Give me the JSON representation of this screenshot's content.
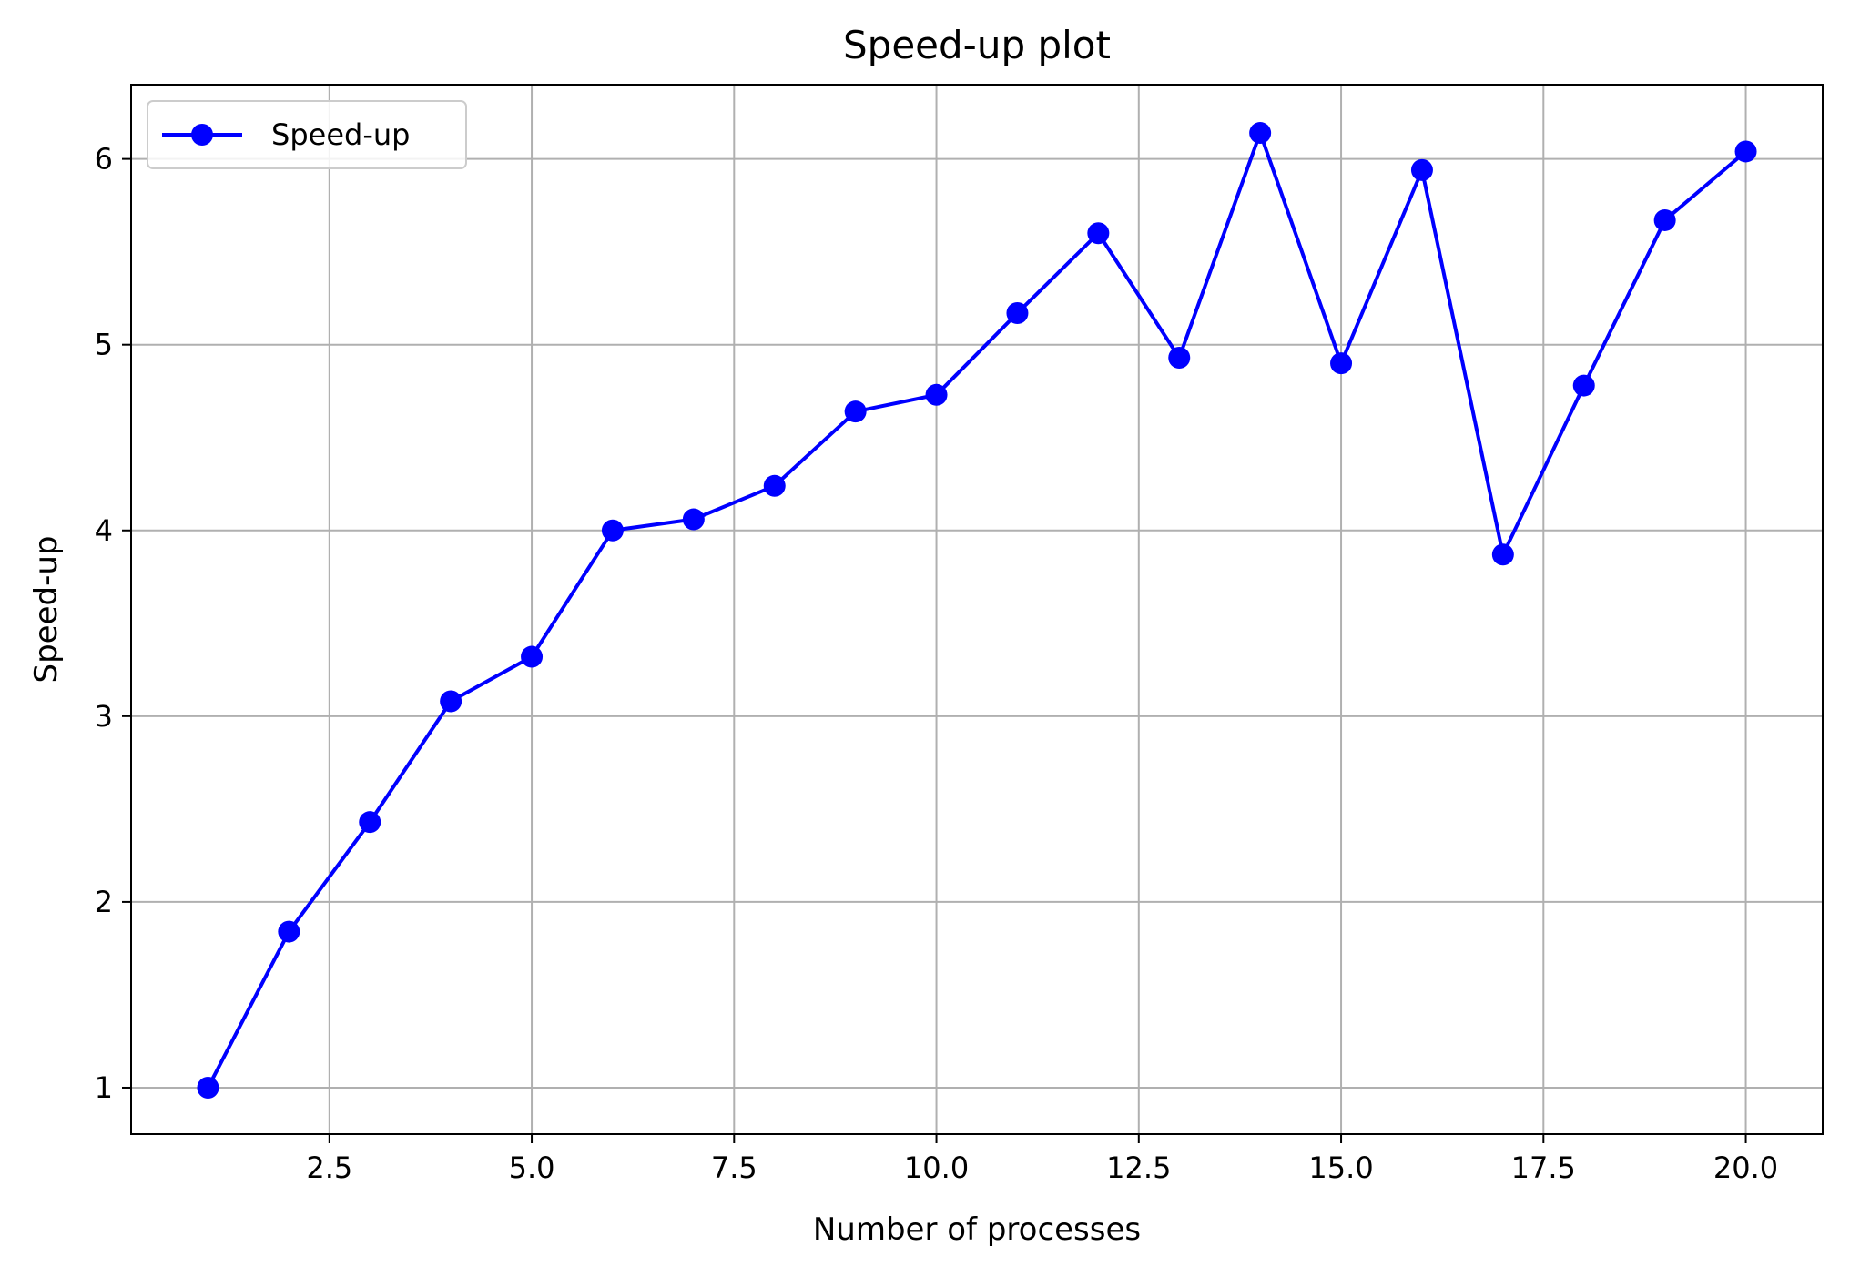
{
  "chart_data": {
    "type": "line",
    "title": "Speed-up plot",
    "xlabel": "Number of processes",
    "ylabel": "Speed-up",
    "xlim": [
      0.05,
      20.95
    ],
    "ylim": [
      0.75,
      6.4
    ],
    "xticks": [
      2.5,
      5.0,
      7.5,
      10.0,
      12.5,
      15.0,
      17.5,
      20.0
    ],
    "xtick_labels": [
      "2.5",
      "5.0",
      "7.5",
      "10.0",
      "12.5",
      "15.0",
      "17.5",
      "20.0"
    ],
    "yticks": [
      1,
      2,
      3,
      4,
      5,
      6
    ],
    "ytick_labels": [
      "1",
      "2",
      "3",
      "4",
      "5",
      "6"
    ],
    "grid": true,
    "legend_position": "top-left",
    "series": [
      {
        "name": "Speed-up",
        "color": "#0000ff",
        "marker": "circle",
        "x": [
          1,
          2,
          3,
          4,
          5,
          6,
          7,
          8,
          9,
          10,
          11,
          12,
          13,
          14,
          15,
          16,
          17,
          18,
          19,
          20
        ],
        "y": [
          1.0,
          1.84,
          2.43,
          3.08,
          3.32,
          4.0,
          4.06,
          4.24,
          4.64,
          4.73,
          5.17,
          5.6,
          4.93,
          6.14,
          4.9,
          5.94,
          3.87,
          4.78,
          5.67,
          6.04
        ]
      }
    ]
  }
}
